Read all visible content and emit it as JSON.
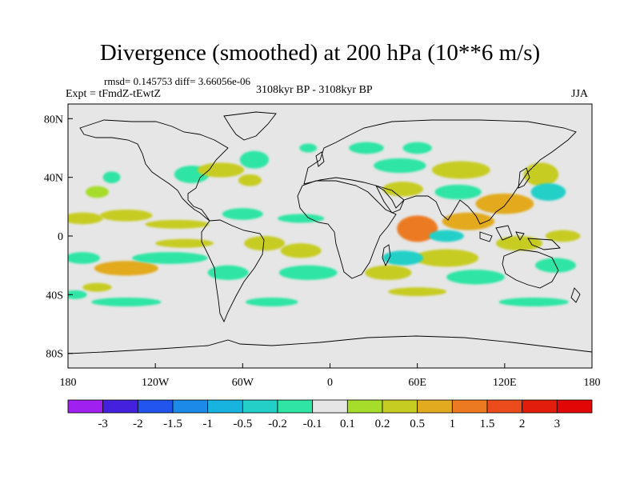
{
  "title": "Divergence (smoothed) at 200 hPa (10**6 m/s)",
  "stats": "rmsd= 0.145753 diff= 3.66056e-06",
  "experiment": "Expt = tFmdZ-tEwtZ",
  "period": "3108kyr BP - 3108kyr BP",
  "season": "JJA",
  "lat_ticks": [
    {
      "value": 80,
      "label": "80N"
    },
    {
      "value": 40,
      "label": "40N"
    },
    {
      "value": 0,
      "label": "0"
    },
    {
      "value": -40,
      "label": "40S"
    },
    {
      "value": -80,
      "label": "80S"
    }
  ],
  "lon_ticks": [
    {
      "value": -180,
      "label": "180"
    },
    {
      "value": -120,
      "label": "120W"
    },
    {
      "value": -60,
      "label": "60W"
    },
    {
      "value": 0,
      "label": "0"
    },
    {
      "value": 60,
      "label": "60E"
    },
    {
      "value": 120,
      "label": "120E"
    },
    {
      "value": 180,
      "label": "180"
    }
  ],
  "legend": {
    "labels": [
      "-3",
      "-2",
      "-1.5",
      "-1",
      "-0.5",
      "-0.2",
      "-0.1",
      "0.1",
      "0.2",
      "0.5",
      "1",
      "1.5",
      "2",
      "3"
    ],
    "colors": [
      "#a020f0",
      "#4422dd",
      "#2255ee",
      "#1c8ae8",
      "#18b4e0",
      "#22d0c8",
      "#2ee5a5",
      "#e6e6e6",
      "#a6dd2a",
      "#c7cc22",
      "#e2aa1e",
      "#ec7a20",
      "#ec4c1c",
      "#e21d0c",
      "#e20606"
    ]
  },
  "chart_data": {
    "type": "heatmap",
    "title": "Divergence (smoothed) at 200 hPa (10**6 m/s)",
    "projection": "cylindrical equidistant",
    "xlim": [
      -180,
      180
    ],
    "ylim": [
      -90,
      90
    ],
    "units": "10**6 m/s",
    "levels": [
      -3,
      -2,
      -1.5,
      -1,
      -0.5,
      -0.2,
      -0.1,
      0.1,
      0.2,
      0.5,
      1,
      1.5,
      2,
      3
    ],
    "patches": [
      {
        "lon": -160,
        "lat": 30,
        "rx": 8,
        "ry": 4,
        "value": 0.15
      },
      {
        "lon": -150,
        "lat": 40,
        "rx": 6,
        "ry": 4,
        "value": -0.15
      },
      {
        "lon": -170,
        "lat": 12,
        "rx": 14,
        "ry": 4,
        "value": 0.3
      },
      {
        "lon": -140,
        "lat": 14,
        "rx": 18,
        "ry": 4,
        "value": 0.25
      },
      {
        "lon": -105,
        "lat": 8,
        "rx": 22,
        "ry": 3,
        "value": 0.2
      },
      {
        "lon": -95,
        "lat": 42,
        "rx": 12,
        "ry": 6,
        "value": -0.15
      },
      {
        "lon": -75,
        "lat": 45,
        "rx": 16,
        "ry": 5,
        "value": 0.3
      },
      {
        "lon": -52,
        "lat": 52,
        "rx": 10,
        "ry": 6,
        "value": -0.2
      },
      {
        "lon": -55,
        "lat": 38,
        "rx": 8,
        "ry": 4,
        "value": 0.2
      },
      {
        "lon": -60,
        "lat": 15,
        "rx": 14,
        "ry": 4,
        "value": -0.15
      },
      {
        "lon": -20,
        "lat": 12,
        "rx": 16,
        "ry": 3,
        "value": -0.15
      },
      {
        "lon": -15,
        "lat": 60,
        "rx": 6,
        "ry": 3,
        "value": -0.15
      },
      {
        "lon": 25,
        "lat": 60,
        "rx": 12,
        "ry": 4,
        "value": -0.2
      },
      {
        "lon": 60,
        "lat": 60,
        "rx": 10,
        "ry": 4,
        "value": -0.2
      },
      {
        "lon": 48,
        "lat": 48,
        "rx": 18,
        "ry": 5,
        "value": -0.2
      },
      {
        "lon": 50,
        "lat": 32,
        "rx": 14,
        "ry": 5,
        "value": 0.2
      },
      {
        "lon": 90,
        "lat": 45,
        "rx": 20,
        "ry": 6,
        "value": 0.3
      },
      {
        "lon": 88,
        "lat": 30,
        "rx": 16,
        "ry": 5,
        "value": -0.2
      },
      {
        "lon": 120,
        "lat": 22,
        "rx": 20,
        "ry": 7,
        "value": 0.7
      },
      {
        "lon": 145,
        "lat": 42,
        "rx": 12,
        "ry": 8,
        "value": 0.4
      },
      {
        "lon": 150,
        "lat": 30,
        "rx": 12,
        "ry": 6,
        "value": -0.3
      },
      {
        "lon": 95,
        "lat": 10,
        "rx": 18,
        "ry": 6,
        "value": 0.8
      },
      {
        "lon": 60,
        "lat": 5,
        "rx": 14,
        "ry": 9,
        "value": 1.0
      },
      {
        "lon": 80,
        "lat": 0,
        "rx": 12,
        "ry": 4,
        "value": -0.4
      },
      {
        "lon": 80,
        "lat": -15,
        "rx": 22,
        "ry": 6,
        "value": 0.3
      },
      {
        "lon": 50,
        "lat": -15,
        "rx": 14,
        "ry": 5,
        "value": -0.3
      },
      {
        "lon": 40,
        "lat": -25,
        "rx": 16,
        "ry": 5,
        "value": 0.2
      },
      {
        "lon": 100,
        "lat": -28,
        "rx": 20,
        "ry": 5,
        "value": -0.2
      },
      {
        "lon": 130,
        "lat": -5,
        "rx": 16,
        "ry": 5,
        "value": 0.2
      },
      {
        "lon": 155,
        "lat": -20,
        "rx": 14,
        "ry": 5,
        "value": -0.2
      },
      {
        "lon": 160,
        "lat": 0,
        "rx": 12,
        "ry": 4,
        "value": 0.2
      },
      {
        "lon": -170,
        "lat": -15,
        "rx": 12,
        "ry": 4,
        "value": -0.15
      },
      {
        "lon": -140,
        "lat": -22,
        "rx": 22,
        "ry": 5,
        "value": 0.5
      },
      {
        "lon": -160,
        "lat": -35,
        "rx": 10,
        "ry": 3,
        "value": 0.2
      },
      {
        "lon": -110,
        "lat": -15,
        "rx": 26,
        "ry": 4,
        "value": -0.2
      },
      {
        "lon": -100,
        "lat": -5,
        "rx": 20,
        "ry": 3,
        "value": 0.2
      },
      {
        "lon": -70,
        "lat": -25,
        "rx": 14,
        "ry": 5,
        "value": -0.2
      },
      {
        "lon": -45,
        "lat": -5,
        "rx": 14,
        "ry": 5,
        "value": 0.4
      },
      {
        "lon": -20,
        "lat": -10,
        "rx": 14,
        "ry": 5,
        "value": 0.3
      },
      {
        "lon": -15,
        "lat": -25,
        "rx": 20,
        "ry": 5,
        "value": -0.2
      },
      {
        "lon": -140,
        "lat": -45,
        "rx": 24,
        "ry": 3,
        "value": -0.2
      },
      {
        "lon": -40,
        "lat": -45,
        "rx": 18,
        "ry": 3,
        "value": -0.2
      },
      {
        "lon": 60,
        "lat": -38,
        "rx": 20,
        "ry": 3,
        "value": 0.2
      },
      {
        "lon": 140,
        "lat": -45,
        "rx": 24,
        "ry": 3,
        "value": -0.2
      },
      {
        "lon": -175,
        "lat": -40,
        "rx": 8,
        "ry": 3,
        "value": -0.15
      }
    ]
  }
}
